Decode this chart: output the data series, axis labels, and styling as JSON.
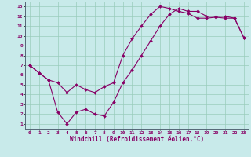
{
  "xlabel": "Windchill (Refroidissement éolien,°C)",
  "xlim": [
    -0.5,
    23.5
  ],
  "ylim": [
    0.5,
    13.5
  ],
  "xticks": [
    0,
    1,
    2,
    3,
    4,
    5,
    6,
    7,
    8,
    9,
    10,
    11,
    12,
    13,
    14,
    15,
    16,
    17,
    18,
    19,
    20,
    21,
    22,
    23
  ],
  "yticks": [
    1,
    2,
    3,
    4,
    5,
    6,
    7,
    8,
    9,
    10,
    11,
    12,
    13
  ],
  "background_color": "#c8eaea",
  "line_color": "#880066",
  "grid_color": "#99ccbb",
  "line1_x": [
    0,
    1,
    2,
    3,
    4,
    5,
    6,
    7,
    8,
    9,
    10,
    11,
    12,
    13,
    14,
    15,
    16,
    17,
    18,
    19,
    20,
    21,
    22,
    23
  ],
  "line1_y": [
    7.0,
    6.2,
    5.5,
    5.2,
    4.2,
    5.0,
    4.5,
    4.2,
    4.8,
    5.2,
    8.0,
    9.7,
    11.0,
    12.2,
    13.0,
    12.8,
    12.5,
    12.3,
    11.8,
    11.8,
    11.9,
    11.8,
    11.8,
    9.8
  ],
  "line2_x": [
    0,
    1,
    2,
    3,
    4,
    5,
    6,
    7,
    8,
    9,
    10,
    11,
    12,
    13,
    14,
    15,
    16,
    17,
    18,
    19,
    20,
    21,
    22,
    23
  ],
  "line2_y": [
    7.0,
    6.2,
    5.5,
    2.2,
    1.0,
    2.2,
    2.5,
    2.0,
    1.8,
    3.2,
    5.2,
    6.5,
    8.0,
    9.5,
    11.0,
    12.2,
    12.8,
    12.5,
    12.5,
    12.0,
    12.0,
    12.0,
    11.8,
    9.8
  ]
}
